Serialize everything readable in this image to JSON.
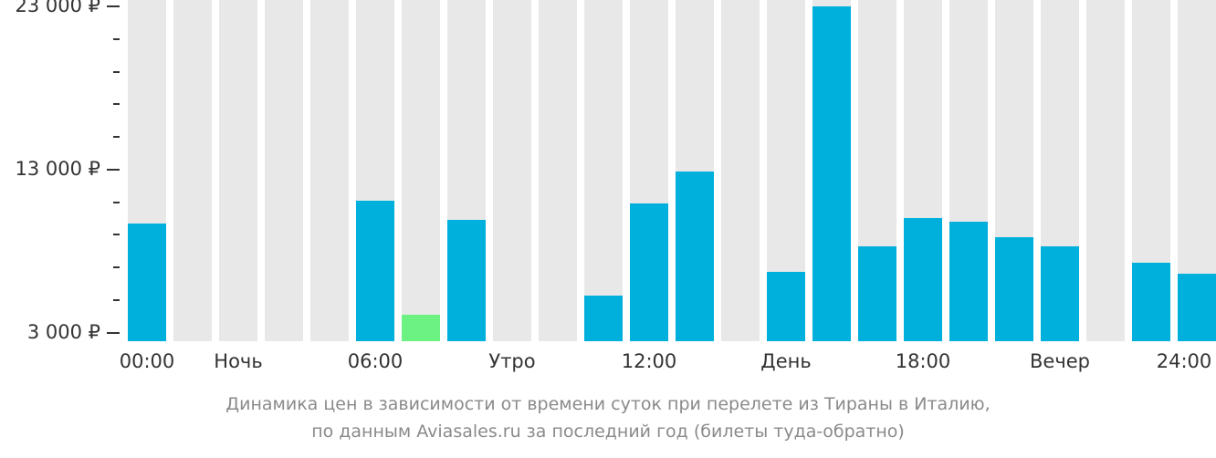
{
  "chart_data": {
    "type": "bar",
    "title": "Динамика цен в зависимости от времени суток при перелете из Тираны в Италию, по данным Aviasales.ru за последний год (билеты туда-обратно)",
    "xlabel": "",
    "ylabel": "",
    "ylim": [
      3000,
      23000
    ],
    "y_ticks": [
      "23 000 ₽",
      "13 000 ₽",
      "3 000 ₽"
    ],
    "y_tick_values": [
      23000,
      13000,
      3000
    ],
    "x_tick_labels": [
      "00:00",
      "Ночь",
      "06:00",
      "Утро",
      "12:00",
      "День",
      "18:00",
      "Вечер",
      "24:00"
    ],
    "categories": [
      "00",
      "01",
      "02",
      "03",
      "04",
      "05",
      "06",
      "07",
      "08",
      "09",
      "10",
      "11",
      "12",
      "13",
      "14",
      "15",
      "16",
      "17",
      "18",
      "19",
      "20",
      "21",
      "22",
      "23"
    ],
    "values": [
      9700,
      null,
      null,
      null,
      null,
      11100,
      4100,
      9900,
      null,
      null,
      5250,
      10900,
      12900,
      null,
      6700,
      23000,
      8300,
      10000,
      9800,
      8850,
      8300,
      null,
      7300,
      6600
    ],
    "highlight_index": 6,
    "colors": {
      "bar": "#00b0dc",
      "highlight": "#6cf283",
      "background_bar": "#e8e8e8",
      "axis": "#333333",
      "caption": "#8a8a8a"
    },
    "grid": false,
    "legend": null
  },
  "caption": {
    "line1": "Динамика цен в зависимости от времени суток при перелете из Тираны в Италию,",
    "line2": "по данным Aviasales.ru за последний год (билеты туда-обратно)"
  }
}
